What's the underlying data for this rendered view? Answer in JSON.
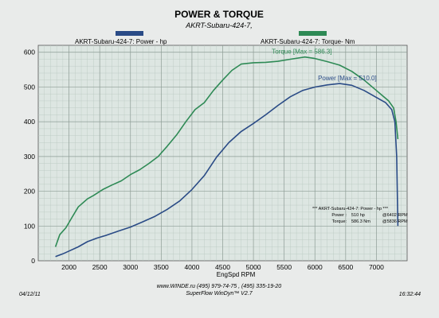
{
  "header": {
    "title": "POWER & TORQUE",
    "subtitle": "AKRT-Subaru-424-7,"
  },
  "legend": {
    "left_label": "AKRT-Subaru-424-7: Power -  hp",
    "right_label": "AKRT-Subaru-424-7: Torque-  Nm",
    "left_color": "#2a4b86",
    "right_color": "#2e8a55"
  },
  "summary": {
    "header": "*** AKRT-Subaru-424-7: Power -  hp  ***",
    "power_label": "Power :",
    "power_value": "510 hp",
    "power_rpm": "@6402 RPM",
    "torque_label": "Torque:",
    "torque_value": "586.3 Nm",
    "torque_rpm": "@5836 RPM"
  },
  "footer": {
    "date": "04/12/11",
    "website_phone": "www.WINDE.ru   (495) 979-74-75 , (495) 335-19-20",
    "software": "SuperFlow WinDyn™ V2.7",
    "time": "16:32:44"
  },
  "chart_data": {
    "type": "line",
    "xlabel": "EngSpd  RPM",
    "ylabel": "",
    "xlim": [
      1500,
      7500
    ],
    "ylim": [
      0,
      620
    ],
    "x_ticks": [
      2000,
      2500,
      3000,
      3500,
      4000,
      4500,
      5000,
      5500,
      6000,
      6500,
      7000
    ],
    "y_ticks": [
      0,
      100,
      200,
      300,
      400,
      500,
      600
    ],
    "grid": true,
    "series": [
      {
        "name": "AKRT-Subaru-424-7: Torque-  Nm",
        "color": "#2e8a55",
        "peak_label": "Torque [Max = 586.3]",
        "x": [
          1780,
          1850,
          1950,
          2050,
          2150,
          2300,
          2400,
          2550,
          2700,
          2850,
          3000,
          3150,
          3300,
          3450,
          3600,
          3750,
          3900,
          4050,
          4200,
          4350,
          4500,
          4650,
          4800,
          5000,
          5200,
          5400,
          5600,
          5836,
          6000,
          6200,
          6400,
          6600,
          6800,
          7000,
          7100,
          7200,
          7280,
          7320,
          7350
        ],
        "y": [
          40,
          75,
          95,
          125,
          155,
          178,
          188,
          205,
          218,
          230,
          248,
          262,
          280,
          300,
          330,
          362,
          400,
          435,
          455,
          490,
          520,
          548,
          566,
          570,
          571,
          574,
          580,
          586.3,
          582,
          573,
          563,
          545,
          520,
          490,
          475,
          460,
          440,
          400,
          350
        ]
      },
      {
        "name": "AKRT-Subaru-424-7: Power -  hp",
        "color": "#2a4b86",
        "peak_label": "Power [Max = 510.0]",
        "x": [
          1780,
          1900,
          2000,
          2150,
          2300,
          2450,
          2600,
          2800,
          3000,
          3200,
          3400,
          3600,
          3800,
          4000,
          4200,
          4400,
          4600,
          4800,
          5000,
          5200,
          5400,
          5600,
          5800,
          6000,
          6200,
          6402,
          6600,
          6800,
          7000,
          7150,
          7250,
          7300,
          7330,
          7350
        ],
        "y": [
          12,
          20,
          28,
          40,
          55,
          65,
          73,
          85,
          97,
          112,
          128,
          148,
          172,
          205,
          245,
          298,
          340,
          372,
          395,
          420,
          447,
          472,
          490,
          500,
          506,
          510,
          505,
          490,
          470,
          455,
          435,
          400,
          300,
          100
        ]
      }
    ]
  }
}
